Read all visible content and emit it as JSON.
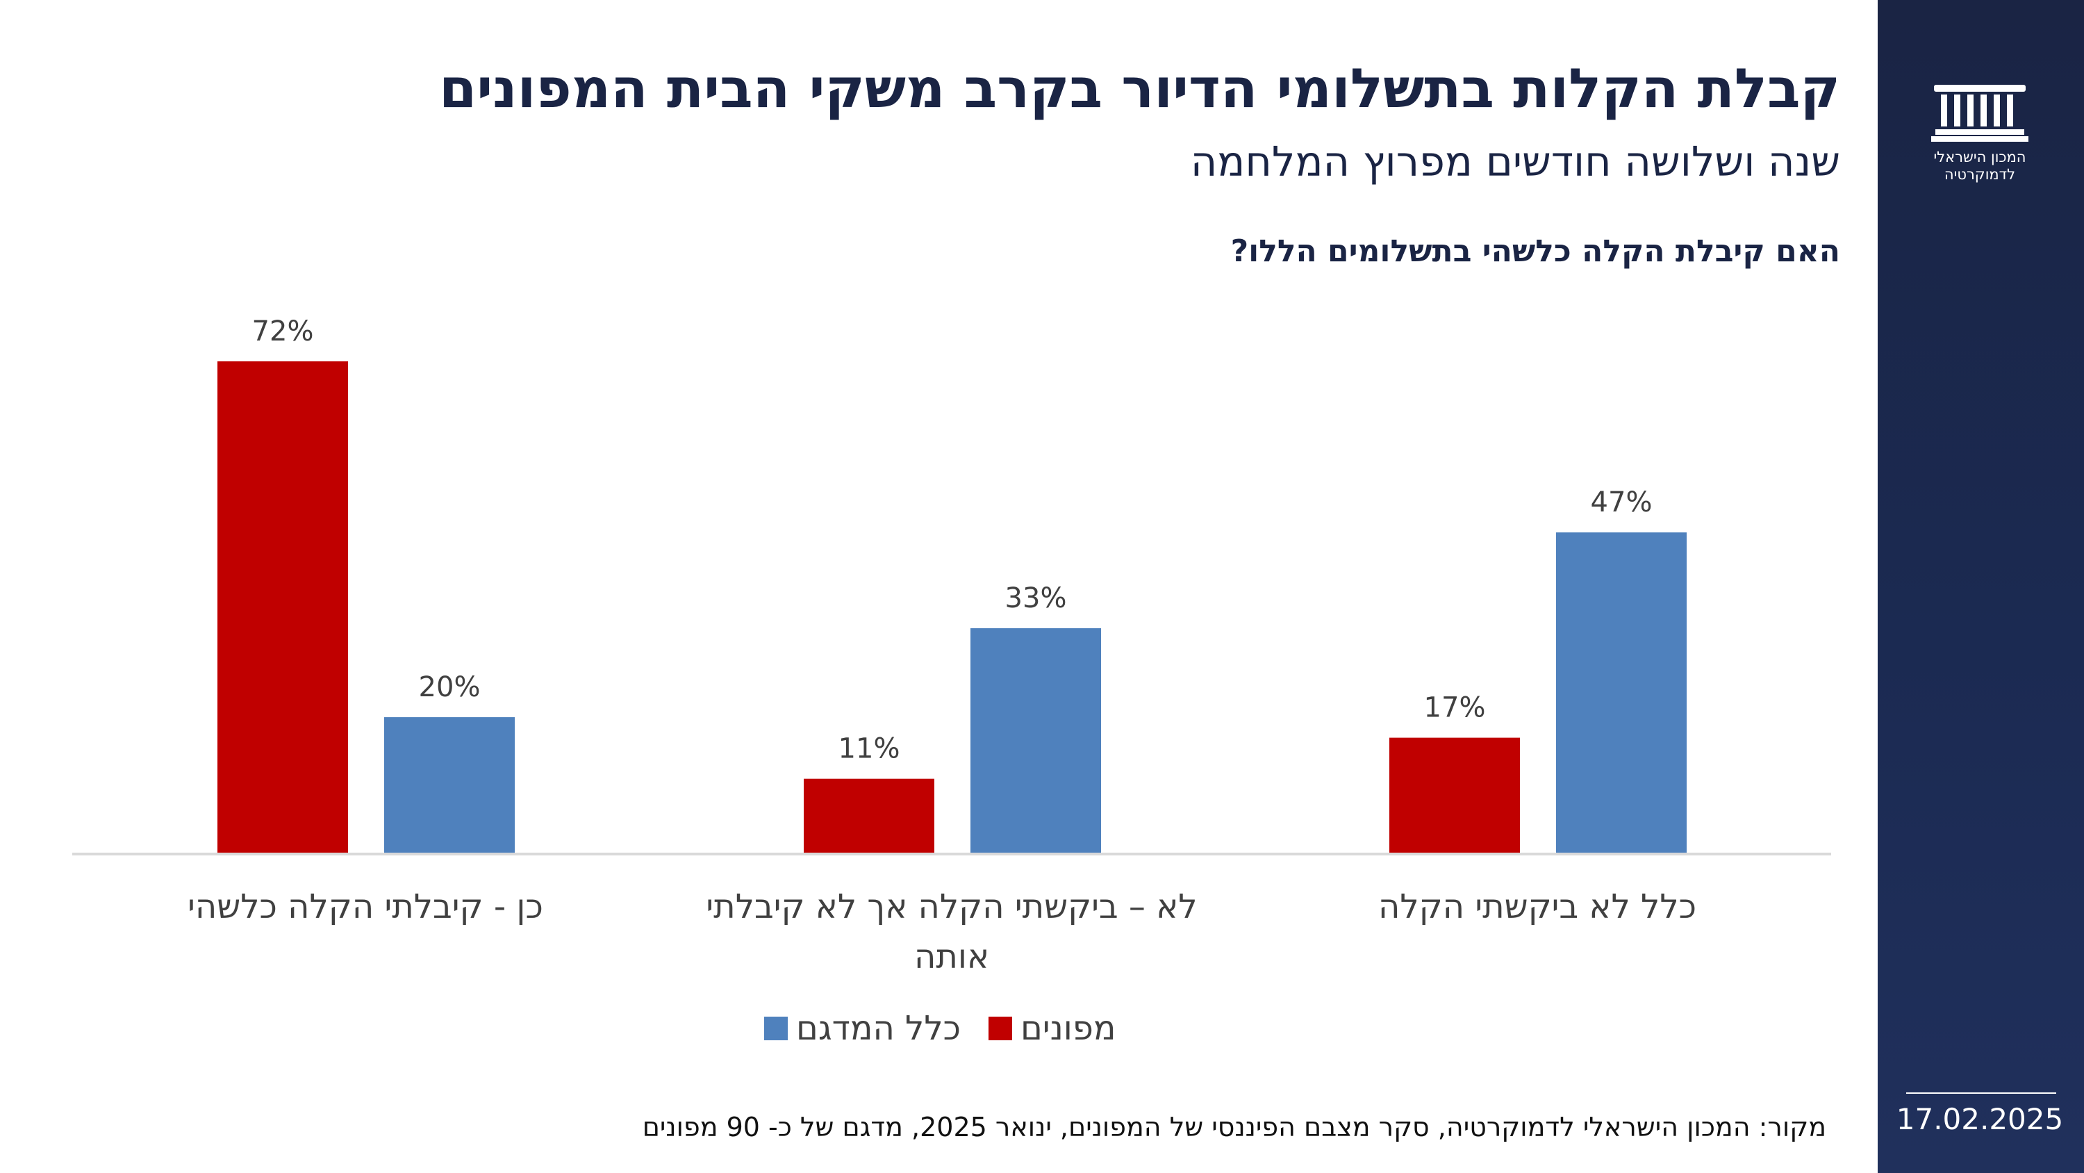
{
  "header": {
    "title": "קבלת הקלות בתשלומי הדיור בקרב משקי הבית המפונים",
    "subtitle": "שנה ושלושה חודשים מפרוץ המלחמה",
    "question": "האם קיבלת הקלה כלשהי בתשלומים הללו?"
  },
  "side_panel": {
    "logo_text_line1": "המכון הישראלי",
    "logo_text_line2": "לדמוקרטיה",
    "date": "17.02.2025"
  },
  "colors": {
    "evacuees": "#c00000",
    "full_sample": "#4f81bd",
    "panel": "#1a2444",
    "axis": "#d9d9d9"
  },
  "chart_data": {
    "type": "bar",
    "title": "האם קיבלת הקלה כלשהי בתשלומים הללו?",
    "categories": [
      "כן - קיבלתי הקלה כלשהי",
      "לא – ביקשתי הקלה אך לא קיבלתי אותה",
      "כלל לא ביקשתי הקלה"
    ],
    "category_lines": [
      [
        "כן - קיבלתי הקלה כלשהי"
      ],
      [
        "לא – ביקשתי הקלה אך לא קיבלתי",
        "אותה"
      ],
      [
        "כלל לא ביקשתי הקלה"
      ]
    ],
    "series": [
      {
        "name": "מפונים",
        "values": [
          72,
          11,
          17
        ],
        "labels": [
          "72%",
          "11%",
          "17%"
        ]
      },
      {
        "name": "כלל המדגם",
        "values": [
          20,
          33,
          47
        ],
        "labels": [
          "20%",
          "33%",
          "47%"
        ]
      }
    ],
    "unit": "%",
    "ylim": [
      0,
      80
    ],
    "grid": false,
    "legend_position": "bottom"
  },
  "legend": {
    "evacuees_label": "מפונים",
    "full_sample_label": "כלל המדגם"
  },
  "footer": {
    "source": "מקור: המכון הישראלי לדמוקרטיה,  סקר מצבם הפיננסי של המפונים, ינואר 2025, מדגם של כ- 90 מפונים"
  }
}
